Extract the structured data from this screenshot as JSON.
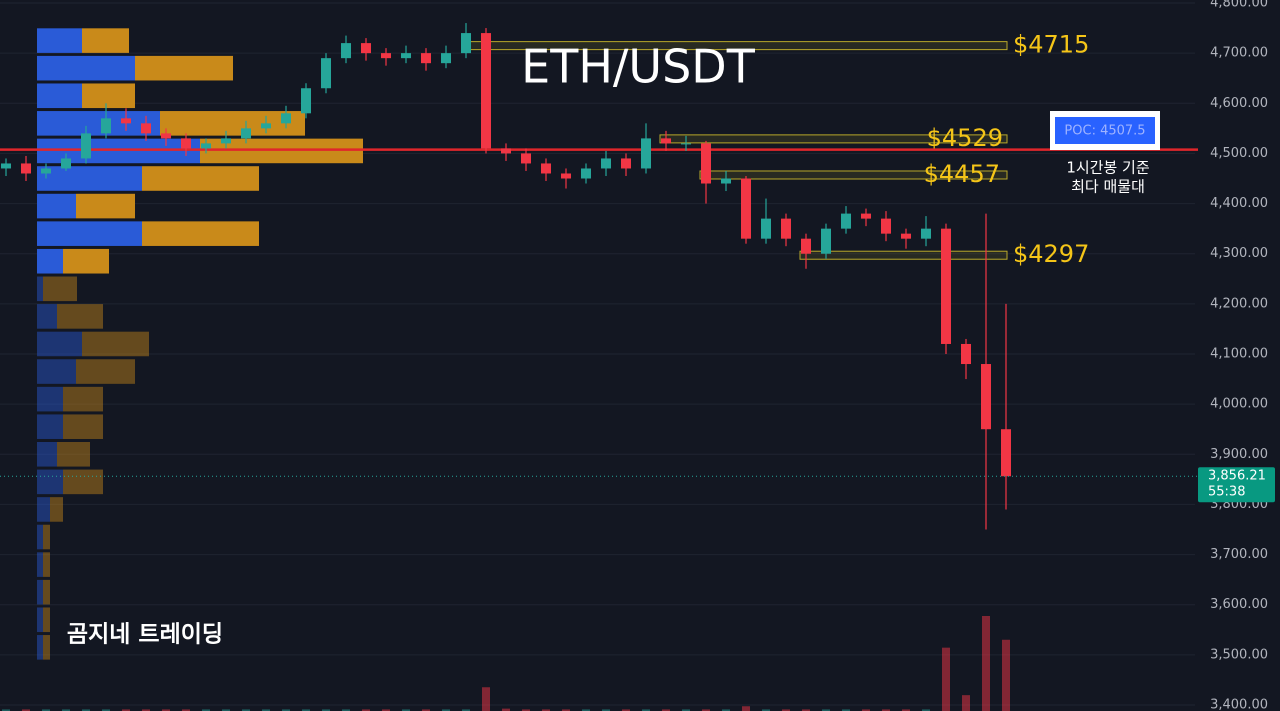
{
  "chart_data": {
    "type": "candlestick",
    "title": "ETH/USDT",
    "watermark": "곰지네 트레이딩",
    "ylim": [
      3400,
      4800
    ],
    "yticks": [
      {
        "value": 3400,
        "label": "3,400.00"
      },
      {
        "value": 3500,
        "label": "3,500.00"
      },
      {
        "value": 3600,
        "label": "3,600.00"
      },
      {
        "value": 3700,
        "label": "3,700.00"
      },
      {
        "value": 3800,
        "label": "3,800.00"
      },
      {
        "value": 3900,
        "label": "3,900.00"
      },
      {
        "value": 4000,
        "label": "4,000.00"
      },
      {
        "value": 4100,
        "label": "4,100.00"
      },
      {
        "value": 4200,
        "label": "4,200.00"
      },
      {
        "value": 4300,
        "label": "4,300.00"
      },
      {
        "value": 4400,
        "label": "4,400.00"
      },
      {
        "value": 4500,
        "label": "4,500.00"
      },
      {
        "value": 4600,
        "label": "4,600.00"
      },
      {
        "value": 4700,
        "label": "4,700.00"
      },
      {
        "value": 4800,
        "label": "4,800.00"
      }
    ],
    "grid": true,
    "up_color": "#26a69a",
    "down_color": "#f23645",
    "open": [
      4470,
      4480,
      4460,
      4470,
      4490,
      4540,
      4570,
      4560,
      4540,
      4530,
      4510,
      4520,
      4530,
      4550,
      4560,
      4580,
      4630,
      4690,
      4720,
      4700,
      4690,
      4700,
      4680,
      4700,
      4740,
      4510,
      4500,
      4480,
      4460,
      4450,
      4470,
      4490,
      4470,
      4530,
      4520,
      4520,
      4440,
      4450,
      4330,
      4370,
      4330,
      4300,
      4350,
      4380,
      4370,
      4340,
      4330,
      4350,
      4120,
      4080,
      3950
    ],
    "high": [
      4490,
      4495,
      4480,
      4500,
      4555,
      4600,
      4590,
      4575,
      4550,
      4540,
      4530,
      4545,
      4565,
      4575,
      4595,
      4640,
      4700,
      4735,
      4730,
      4710,
      4715,
      4710,
      4715,
      4760,
      4750,
      4520,
      4510,
      4490,
      4470,
      4480,
      4505,
      4500,
      4560,
      4545,
      4535,
      4525,
      4465,
      4455,
      4410,
      4380,
      4340,
      4360,
      4395,
      4390,
      4385,
      4350,
      4375,
      4360,
      4130,
      4380,
      4200
    ],
    "low": [
      4455,
      4445,
      4450,
      4465,
      4480,
      4530,
      4545,
      4525,
      4515,
      4495,
      4500,
      4510,
      4520,
      4540,
      4550,
      4570,
      4620,
      4680,
      4685,
      4675,
      4680,
      4665,
      4670,
      4690,
      4500,
      4485,
      4465,
      4445,
      4430,
      4440,
      4455,
      4455,
      4460,
      4505,
      4505,
      4400,
      4425,
      4320,
      4320,
      4315,
      4270,
      4290,
      4340,
      4355,
      4325,
      4310,
      4315,
      4100,
      4050,
      3750,
      3790
    ],
    "close": [
      4480,
      4460,
      4470,
      4490,
      4540,
      4570,
      4560,
      4540,
      4530,
      4510,
      4520,
      4530,
      4550,
      4560,
      4580,
      4630,
      4690,
      4720,
      4700,
      4690,
      4700,
      4680,
      4700,
      4740,
      4510,
      4500,
      4480,
      4460,
      4450,
      4470,
      4490,
      4470,
      4530,
      4520,
      4520,
      4440,
      4450,
      4330,
      4370,
      4330,
      4300,
      4350,
      4380,
      4370,
      4340,
      4330,
      4350,
      4120,
      4080,
      3950,
      3856.21
    ],
    "volume": [
      2,
      2,
      2,
      2,
      2,
      2,
      2,
      2,
      2,
      2,
      2,
      2,
      2,
      2,
      2,
      2,
      2,
      2,
      2,
      2,
      2,
      2,
      2,
      2,
      30,
      3,
      2,
      2,
      2,
      2,
      2,
      2,
      2,
      2,
      2,
      2,
      2,
      6,
      2,
      2,
      2,
      2,
      2,
      2,
      2,
      2,
      2,
      80,
      20,
      120,
      90
    ],
    "volume_profile": {
      "price": [
        4725,
        4670,
        4615,
        4560,
        4505,
        4450,
        4395,
        4340,
        4285,
        4230,
        4175,
        4120,
        4065,
        4010,
        3955,
        3900,
        3845,
        3790,
        3735,
        3680,
        3625,
        3570,
        3515
      ],
      "buy": [
        45,
        98,
        45,
        123,
        163,
        105,
        39,
        105,
        26,
        6,
        20,
        45,
        39,
        26,
        26,
        20,
        26,
        13,
        6,
        6,
        6,
        6,
        6
      ],
      "sell": [
        47,
        98,
        53,
        145,
        163,
        117,
        59,
        117,
        46,
        34,
        46,
        67,
        59,
        40,
        40,
        33,
        40,
        13,
        7,
        7,
        7,
        7,
        7
      ]
    },
    "levels": [
      {
        "value": 4715,
        "label": "$4715"
      },
      {
        "value": 4529,
        "label": "$4529"
      },
      {
        "value": 4457,
        "label": "$4457"
      },
      {
        "value": 4297,
        "label": "$4297"
      }
    ],
    "poc": {
      "value": 4507.5,
      "label": "POC: 4507.5",
      "note": [
        "1시간봉 기준",
        "최다 매물대"
      ]
    },
    "last_price": {
      "value": 3856.21,
      "label": "3,856.21",
      "timer": "55:38"
    }
  }
}
